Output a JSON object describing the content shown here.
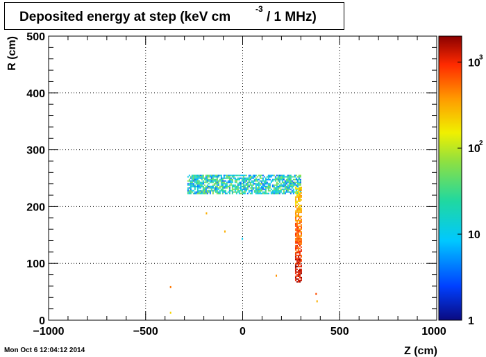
{
  "title": {
    "main": "Deposited energy at step (keV cm",
    "sup": "-3",
    "end": "/ 1 MHz)"
  },
  "timestamp": "Mon Oct  6 12:04:12 2014",
  "chart_data": {
    "type": "heatmap",
    "xlabel": "Z (cm)",
    "ylabel": "R (cm)",
    "xlim": [
      -1000,
      1000
    ],
    "ylim": [
      0,
      500
    ],
    "x_ticks": [
      -1000,
      -500,
      0,
      500,
      1000
    ],
    "x_tick_labels": [
      "−1000",
      "−500",
      "0",
      "500",
      "1000"
    ],
    "y_ticks": [
      0,
      100,
      200,
      300,
      400,
      500
    ],
    "y_tick_labels": [
      "0",
      "100",
      "200",
      "300",
      "400",
      "500"
    ],
    "grid": true,
    "colorbar": {
      "scale": "log",
      "range": [
        1,
        2000
      ],
      "labels": [
        {
          "value": 1,
          "base": "1",
          "exp": ""
        },
        {
          "value": 10,
          "base": "10",
          "exp": ""
        },
        {
          "value": 100,
          "base": "10",
          "exp": "2"
        },
        {
          "value": 1000,
          "base": "10",
          "exp": "3"
        }
      ]
    },
    "regions": [
      {
        "name": "horizontal band",
        "z": [
          -285,
          295
        ],
        "r": [
          223,
          256
        ],
        "value_range": [
          3,
          80
        ]
      },
      {
        "name": "vertical column",
        "z": [
          270,
          305
        ],
        "r": [
          68,
          235
        ],
        "value_range": [
          60,
          2000
        ]
      },
      {
        "name": "isolated hits",
        "points": [
          [
            -375,
            60,
            500
          ],
          [
            -375,
            15,
            200
          ],
          [
            -190,
            190,
            300
          ],
          [
            -95,
            158,
            300
          ],
          [
            -5,
            145,
            10
          ],
          [
            170,
            80,
            400
          ],
          [
            375,
            48,
            700
          ],
          [
            380,
            35,
            300
          ]
        ]
      }
    ]
  }
}
